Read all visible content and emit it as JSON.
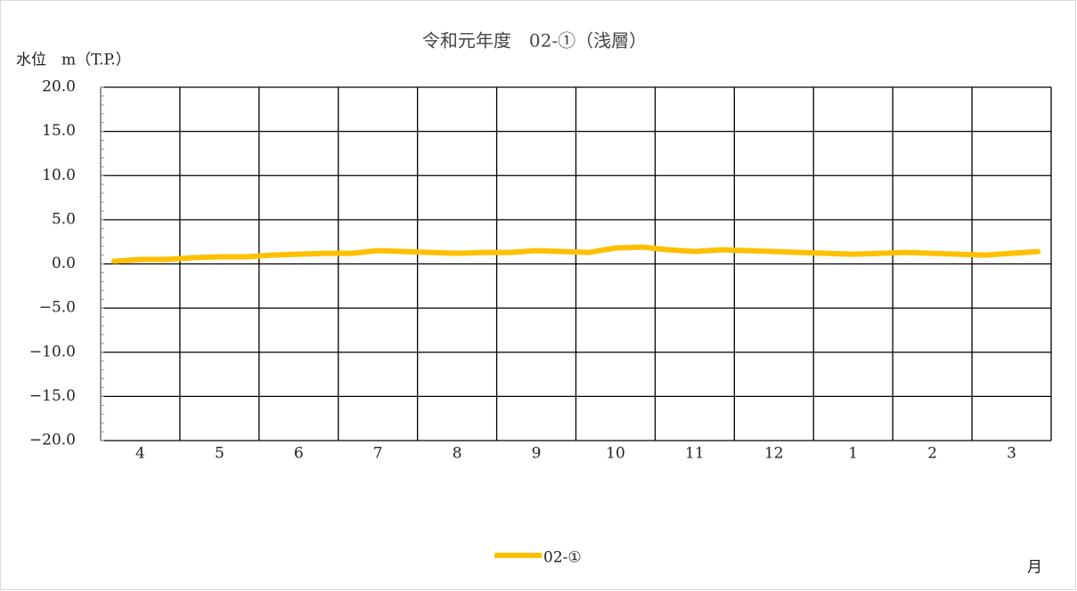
{
  "chart_data": {
    "type": "line",
    "title": "令和元年度　02-①（浅層）",
    "y_label": "水位　m（T.P.）",
    "x_label": "月",
    "categories": [
      null,
      "4",
      null,
      null,
      "5",
      null,
      null,
      "6",
      null,
      null,
      "7",
      null,
      null,
      "8",
      null,
      null,
      "9",
      null,
      null,
      "10",
      null,
      null,
      "11",
      null,
      null,
      "12",
      null,
      null,
      "1",
      null,
      null,
      "2",
      null,
      null,
      "3",
      null
    ],
    "series": [
      {
        "name": "02-①",
        "color": "#ffc000",
        "values": [
          0.3,
          0.5,
          0.5,
          0.7,
          0.8,
          0.8,
          1.0,
          1.1,
          1.2,
          1.2,
          1.5,
          1.4,
          1.3,
          1.2,
          1.3,
          1.3,
          1.5,
          1.4,
          1.3,
          1.8,
          1.9,
          1.6,
          1.4,
          1.6,
          1.5,
          1.4,
          1.3,
          1.2,
          1.1,
          1.2,
          1.3,
          1.2,
          1.1,
          1.0,
          1.2,
          1.4
        ]
      }
    ],
    "ylim": [
      -20,
      20
    ],
    "yticks": [
      {
        "value": 20,
        "label": "20.0"
      },
      {
        "value": 15,
        "label": "15.0"
      },
      {
        "value": 10,
        "label": "10.0"
      },
      {
        "value": 5,
        "label": "5.0"
      },
      {
        "value": 0,
        "label": "0.0"
      },
      {
        "value": -5,
        "label": "−5.0"
      },
      {
        "value": -10,
        "label": "−10.0"
      },
      {
        "value": -15,
        "label": "−15.0"
      },
      {
        "value": -20,
        "label": "−20.0"
      }
    ],
    "grid": true
  }
}
